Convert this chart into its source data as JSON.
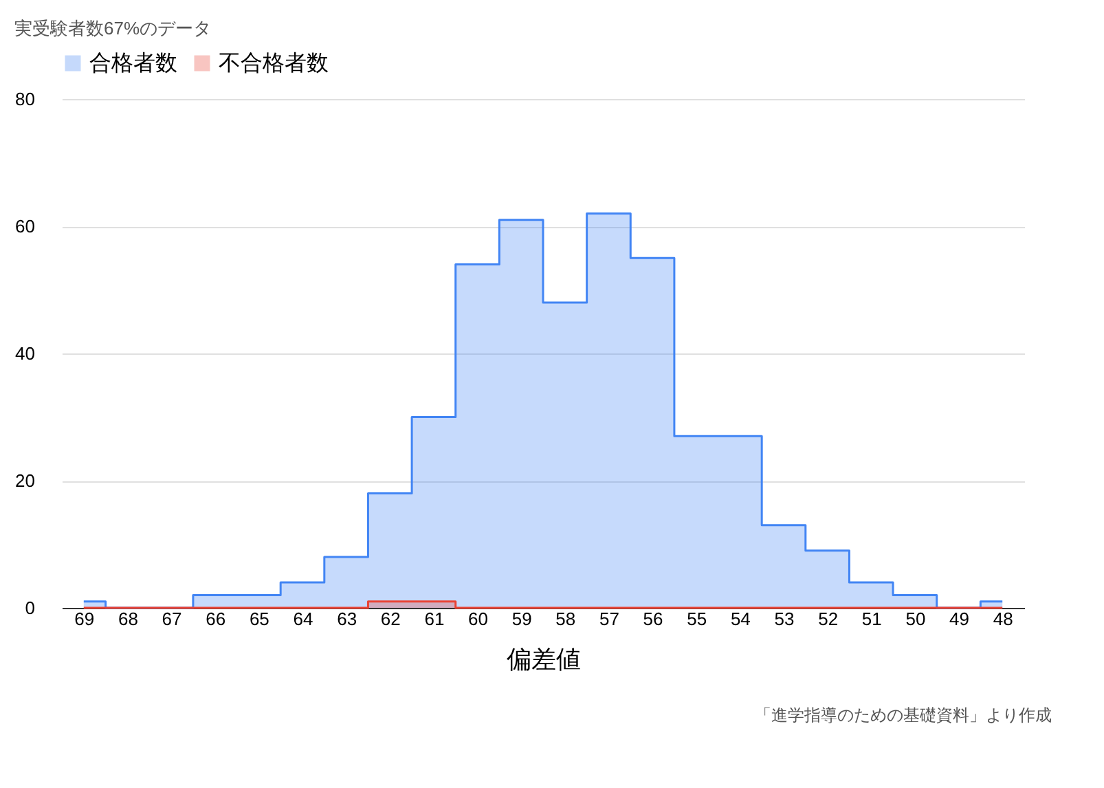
{
  "chart_data": {
    "type": "step",
    "title": "実受験者数67%のデータ",
    "xlabel": "偏差値",
    "categories": [
      "69",
      "68",
      "67",
      "66",
      "65",
      "64",
      "63",
      "62",
      "61",
      "60",
      "59",
      "58",
      "57",
      "56",
      "55",
      "54",
      "53",
      "52",
      "51",
      "50",
      "49",
      "48"
    ],
    "series": [
      {
        "name": "合格者数",
        "color": "#4285f4",
        "values": [
          1,
          0,
          0,
          2,
          2,
          4,
          8,
          18,
          30,
          54,
          61,
          48,
          62,
          55,
          27,
          27,
          13,
          9,
          4,
          2,
          0,
          1
        ]
      },
      {
        "name": "不合格者数",
        "color": "#ea4335",
        "values": [
          0,
          0,
          0,
          0,
          0,
          0,
          0,
          1,
          1,
          0,
          0,
          0,
          0,
          0,
          0,
          0,
          0,
          0,
          0,
          0,
          0,
          0
        ]
      }
    ],
    "ylim": [
      0,
      80
    ],
    "yticks": [
      0,
      20,
      40,
      60,
      80
    ],
    "grid": "y",
    "legend": "top",
    "annotations": [
      "「進学指導のための基礎資料」より作成"
    ]
  }
}
